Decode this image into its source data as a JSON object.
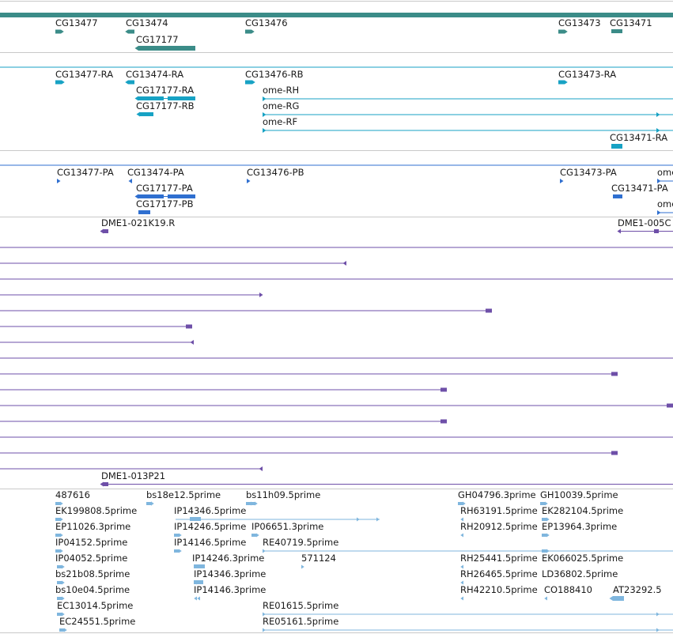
{
  "tracks": [
    {
      "id": "gene",
      "color": "#3b8c88",
      "features": [
        {
          "label": "CG13477"
        },
        {
          "label": "CG13474"
        },
        {
          "label": "CG17177"
        },
        {
          "label": "CG13476"
        },
        {
          "label": "CG13473"
        },
        {
          "label": "CG13471"
        }
      ]
    },
    {
      "id": "transcript-ra",
      "color": "#17a2c4",
      "features": [
        {
          "label": "CG13477-RA"
        },
        {
          "label": "CG13474-RA"
        },
        {
          "label": "CG17177-RA"
        },
        {
          "label": "CG17177-RB"
        },
        {
          "label": "CG13476-RB"
        },
        {
          "label": "ome-RH"
        },
        {
          "label": "ome-RG"
        },
        {
          "label": "ome-RF"
        },
        {
          "label": "CG13473-RA"
        },
        {
          "label": "CG13471-RA"
        }
      ]
    },
    {
      "id": "protein-pa",
      "color": "#2f6fd0",
      "features": [
        {
          "label": "CG13477-PA"
        },
        {
          "label": "CG13474-PA"
        },
        {
          "label": "CG17177-PA"
        },
        {
          "label": "CG17177-PB"
        },
        {
          "label": "CG13476-PB"
        },
        {
          "label": "CG13473-PA"
        },
        {
          "label": "CG13471-PA"
        },
        {
          "label": "ome"
        },
        {
          "label": "ome"
        }
      ]
    },
    {
      "id": "clone",
      "color": "#6e4fa8",
      "features": [
        {
          "label": "DME1-021K19.R"
        },
        {
          "label": "DME1-005C"
        },
        {
          "label": "DME1-013P21"
        }
      ]
    },
    {
      "id": "est",
      "color": "#7fb6de",
      "features": [
        {
          "label": "487616"
        },
        {
          "label": "bs18e12.5prime"
        },
        {
          "label": "bs11h09.5prime"
        },
        {
          "label": "GH04796.3prime"
        },
        {
          "label": "GH10039.5prime"
        },
        {
          "label": "EK199808.5prime"
        },
        {
          "label": "IP14346.5prime"
        },
        {
          "label": "RH63191.5prime"
        },
        {
          "label": "EK282104.5prime"
        },
        {
          "label": "EP11026.3prime"
        },
        {
          "label": "IP14246.5prime"
        },
        {
          "label": "IP06651.3prime"
        },
        {
          "label": "RH20912.5prime"
        },
        {
          "label": "EP13964.3prime"
        },
        {
          "label": "IP04152.5prime"
        },
        {
          "label": "IP14146.5prime"
        },
        {
          "label": "RE40719.5prime"
        },
        {
          "label": "IP04052.5prime"
        },
        {
          "label": "IP14246.3prime"
        },
        {
          "label": "571124"
        },
        {
          "label": "RH25441.5prime"
        },
        {
          "label": "EK066025.5prime"
        },
        {
          "label": "bs21b08.5prime"
        },
        {
          "label": "IP14346.3prime"
        },
        {
          "label": "RH26465.5prime"
        },
        {
          "label": "LD36802.5prime"
        },
        {
          "label": "bs10e04.5prime"
        },
        {
          "label": "IP14146.3prime"
        },
        {
          "label": "RH42210.5prime"
        },
        {
          "label": "CO188410"
        },
        {
          "label": "AT23292.5"
        },
        {
          "label": "EC13014.5prime"
        },
        {
          "label": "RE01615.5prime"
        },
        {
          "label": "EC24551.5prime"
        },
        {
          "label": "RE05161.5prime"
        }
      ]
    }
  ]
}
